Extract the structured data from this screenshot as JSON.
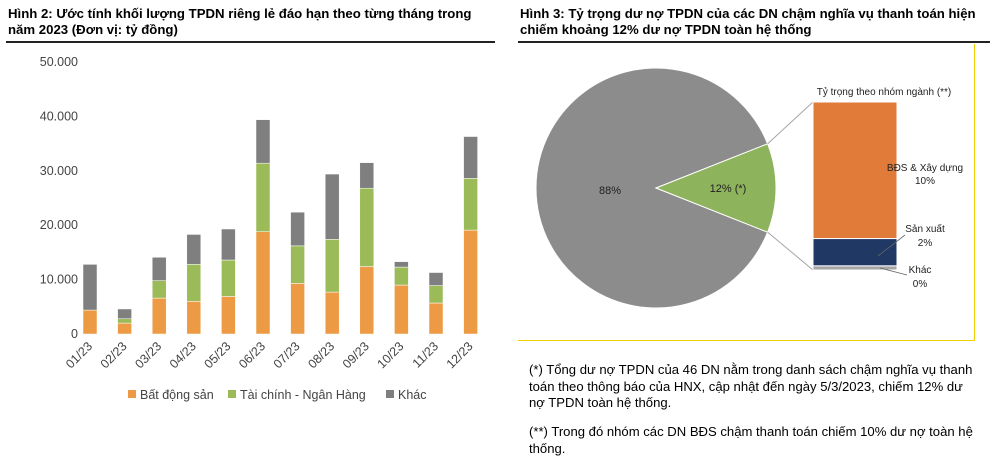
{
  "figure1": {
    "title": "Hình 2: Ước tính khối lượng TPDN riêng lẻ đáo hạn theo từng tháng trong năm 2023 (Đơn vị: tỷ đồng)"
  },
  "figure2": {
    "title": "Hình 3: Tỷ trọng dư nợ TPDN của các DN chậm nghĩa vụ thanh toán hiện chiếm khoảng 12% dư nợ TPDN toàn hệ thống",
    "notes": [
      "(*) Tổng dư nợ TPDN của 46 DN nằm trong danh sách chậm nghĩa vụ thanh toán theo thông báo của HNX, cập nhật đến ngày 5/3/2023, chiếm 12% dư nợ TPDN toàn hệ thống.",
      "(**) Trong đó nhóm các DN BĐS chậm thanh toán chiếm 10% dư nợ toàn hệ thống."
    ]
  },
  "colors": {
    "bds": "#ed9a44",
    "taichinh": "#9bbb59",
    "khac": "#7f7f7f",
    "pie_main": "#8c8c8c",
    "pie_slice": "#8db35c",
    "bar_bds": "#e07b39",
    "bar_sx": "#1f3864",
    "bar_khac": "#a6a6a6"
  },
  "chart_data": [
    {
      "type": "bar",
      "stacked": true,
      "categories": [
        "01/23",
        "02/23",
        "03/23",
        "04/23",
        "05/23",
        "06/23",
        "07/23",
        "08/23",
        "09/23",
        "10/23",
        "11/23",
        "12/23"
      ],
      "series": [
        {
          "name": "Bất động sản",
          "values": [
            4400,
            2000,
            6600,
            6000,
            6900,
            18800,
            9300,
            7700,
            12400,
            9000,
            5700,
            19100
          ]
        },
        {
          "name": "Tài chính - Ngân Hàng",
          "values": [
            0,
            800,
            3200,
            6800,
            6700,
            12600,
            6900,
            9700,
            14400,
            3300,
            3200,
            9500
          ]
        },
        {
          "name": "Khác",
          "values": [
            8400,
            1800,
            4300,
            5500,
            5700,
            8000,
            6200,
            12000,
            4700,
            1000,
            2400,
            7700
          ]
        }
      ],
      "y_ticks": [
        "0",
        "10.000",
        "20.000",
        "30.000",
        "40.000",
        "50.000"
      ],
      "ylim": [
        0,
        50000
      ],
      "grid": false,
      "legend": "bottom"
    },
    {
      "type": "pie",
      "slices": [
        {
          "label": "88%",
          "value": 88
        },
        {
          "label": "12% (*)",
          "value": 12
        }
      ],
      "breakdown": {
        "title": "Tỷ trọng theo nhóm ngành (**)",
        "segments": [
          {
            "name": "BĐS & Xây dựng",
            "value": 10,
            "label": "10%"
          },
          {
            "name": "Sản xuất",
            "value": 2,
            "label": "2%"
          },
          {
            "name": "Khác",
            "value": 0.3,
            "label": "0%"
          }
        ]
      }
    }
  ]
}
